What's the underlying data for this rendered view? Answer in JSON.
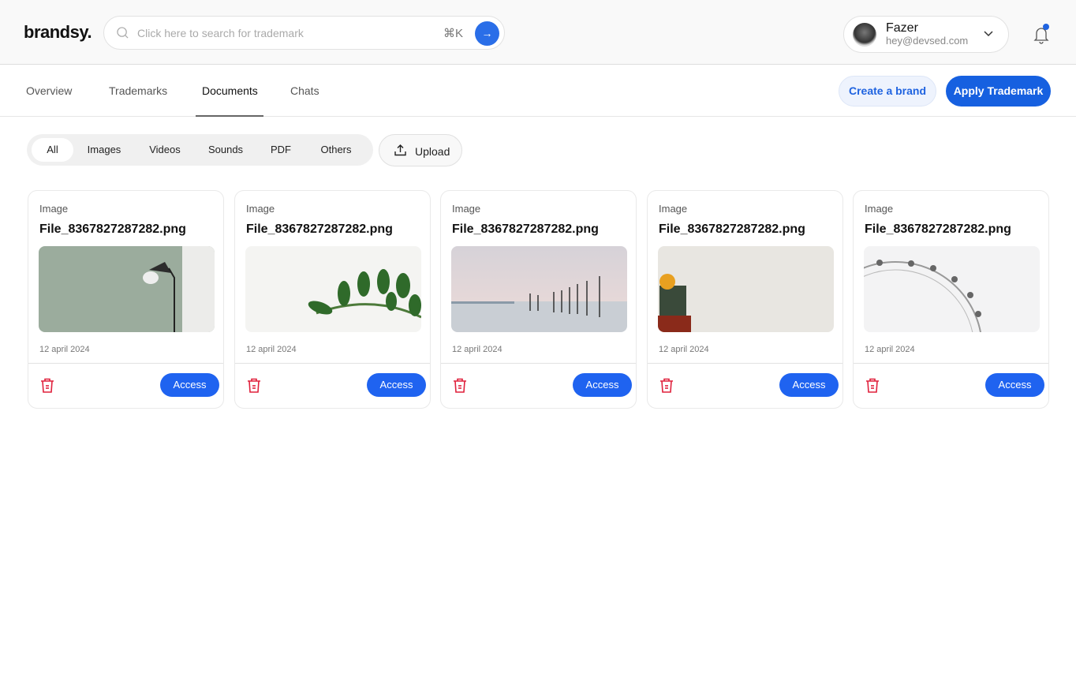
{
  "header": {
    "logo": "brandsy.",
    "search_placeholder": "Click here to search for trademark",
    "shortcut": "⌘K",
    "go_icon": "arrow-right-icon",
    "user": {
      "name": "Fazer",
      "email": "hey@devsed.com"
    },
    "notification_dot_color": "#1f63e0"
  },
  "nav": {
    "tabs": [
      {
        "label": "Overview"
      },
      {
        "label": "Trademarks"
      },
      {
        "label": "Documents",
        "active": true
      },
      {
        "label": "Chats"
      }
    ],
    "create_brand": "Create a brand",
    "apply_trademark": "Apply Trademark"
  },
  "filters": {
    "items": [
      {
        "label": "All",
        "active": true
      },
      {
        "label": "Images"
      },
      {
        "label": "Videos"
      },
      {
        "label": "Sounds"
      },
      {
        "label": "PDF"
      },
      {
        "label": "Others"
      }
    ],
    "upload": "Upload"
  },
  "cards": [
    {
      "type": "Image",
      "name": "File_8367827287282.png",
      "date": "12 april 2024",
      "action": "Access",
      "thumb": "lamp"
    },
    {
      "type": "Image",
      "name": "File_8367827287282.png",
      "date": "12 april 2024",
      "action": "Access",
      "thumb": "leaves"
    },
    {
      "type": "Image",
      "name": "File_8367827287282.png",
      "date": "12 april 2024",
      "action": "Access",
      "thumb": "sea-posts"
    },
    {
      "type": "Image",
      "name": "File_8367827287282.png",
      "date": "12 april 2024",
      "action": "Access",
      "thumb": "cactus"
    },
    {
      "type": "Image",
      "name": "File_8367827287282.png",
      "date": "12 april 2024",
      "action": "Access",
      "thumb": "ferris-wheel"
    }
  ],
  "colors": {
    "accent": "#1f63f0",
    "danger": "#e0203c"
  }
}
